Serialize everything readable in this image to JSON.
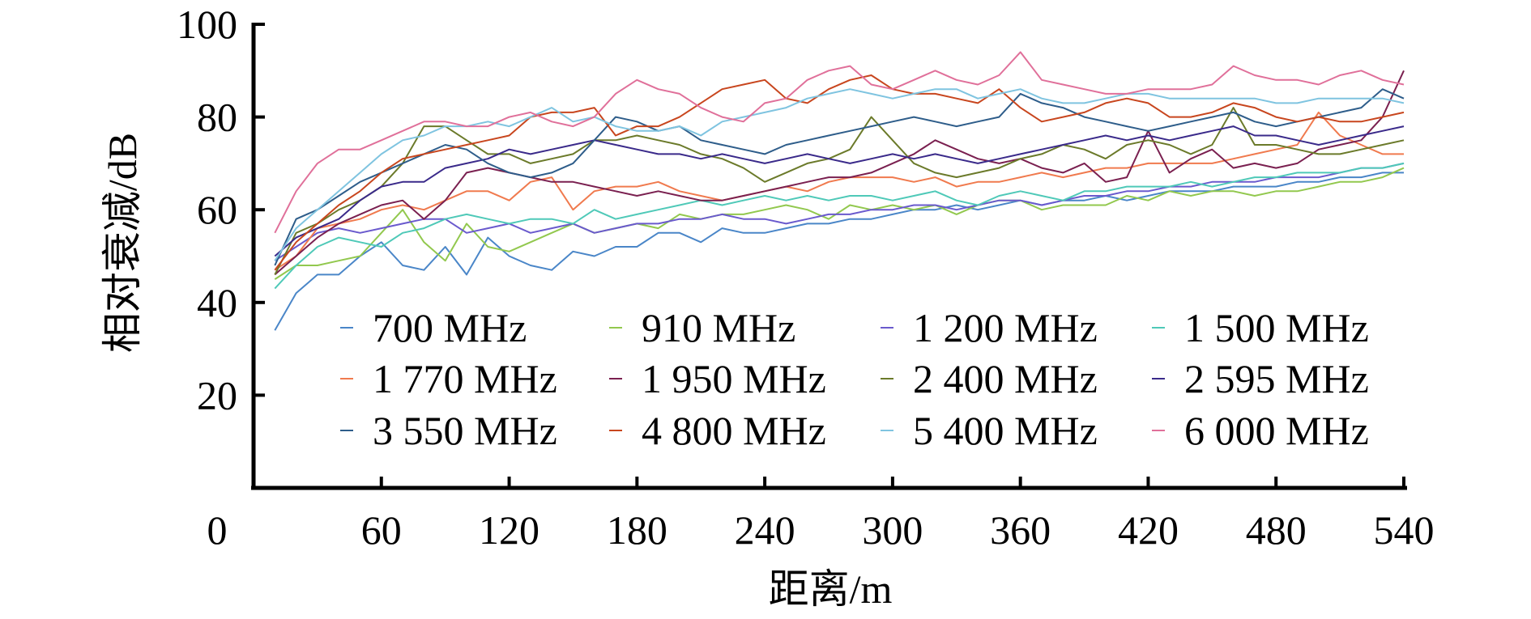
{
  "chart_data": {
    "type": "line",
    "xlabel": "距离/m",
    "ylabel": "相对衰减/dB",
    "xlim": [
      0,
      540
    ],
    "ylim": [
      0,
      100
    ],
    "x_ticks": [
      "0",
      "60",
      "120",
      "180",
      "240",
      "300",
      "360",
      "420",
      "480",
      "540"
    ],
    "y_ticks": [
      "20",
      "40",
      "60",
      "80",
      "100"
    ],
    "grid": false,
    "legend_position": "inside-lower-right",
    "x": [
      10,
      20,
      30,
      40,
      50,
      60,
      70,
      80,
      90,
      100,
      110,
      120,
      130,
      140,
      150,
      160,
      170,
      180,
      190,
      200,
      210,
      220,
      230,
      240,
      250,
      260,
      270,
      280,
      290,
      300,
      310,
      320,
      330,
      340,
      350,
      360,
      370,
      380,
      390,
      400,
      410,
      420,
      430,
      440,
      450,
      460,
      470,
      480,
      490,
      500,
      510,
      520,
      530,
      540
    ],
    "series": [
      {
        "name": "700 MHz",
        "color": "#4a86c8",
        "values": [
          34,
          42,
          46,
          46,
          50,
          53,
          48,
          47,
          52,
          46,
          54,
          50,
          48,
          47,
          51,
          50,
          52,
          52,
          55,
          55,
          53,
          56,
          55,
          55,
          56,
          57,
          57,
          58,
          58,
          59,
          60,
          60,
          61,
          60,
          61,
          62,
          61,
          62,
          62,
          63,
          62,
          63,
          64,
          64,
          64,
          65,
          65,
          65,
          66,
          66,
          67,
          67,
          68,
          68
        ]
      },
      {
        "name": "910 MHz",
        "color": "#92c84e",
        "values": [
          45,
          48,
          48,
          49,
          50,
          55,
          60,
          53,
          49,
          57,
          52,
          51,
          53,
          55,
          57,
          55,
          56,
          57,
          56,
          59,
          58,
          59,
          59,
          60,
          61,
          60,
          58,
          61,
          60,
          61,
          60,
          61,
          59,
          61,
          62,
          62,
          60,
          61,
          61,
          61,
          63,
          62,
          64,
          63,
          64,
          64,
          63,
          64,
          64,
          65,
          66,
          66,
          67,
          69
        ]
      },
      {
        "name": "1 200 MHz",
        "color": "#6a5acd",
        "values": [
          49,
          52,
          55,
          56,
          55,
          56,
          57,
          58,
          58,
          55,
          56,
          57,
          55,
          56,
          57,
          55,
          56,
          57,
          57,
          58,
          58,
          59,
          58,
          58,
          57,
          58,
          59,
          59,
          60,
          60,
          61,
          61,
          60,
          61,
          62,
          62,
          61,
          62,
          63,
          63,
          64,
          64,
          65,
          65,
          66,
          66,
          66,
          67,
          67,
          67,
          68,
          69,
          69,
          70
        ]
      },
      {
        "name": "1 500 MHz",
        "color": "#4fc9b8",
        "values": [
          43,
          48,
          52,
          54,
          53,
          52,
          55,
          56,
          58,
          59,
          58,
          57,
          58,
          58,
          57,
          60,
          58,
          59,
          60,
          61,
          62,
          61,
          62,
          63,
          62,
          63,
          62,
          63,
          63,
          62,
          63,
          64,
          62,
          61,
          63,
          64,
          63,
          62,
          64,
          64,
          65,
          65,
          65,
          66,
          65,
          66,
          67,
          67,
          68,
          68,
          68,
          69,
          69,
          70
        ]
      },
      {
        "name": "1 770 MHz",
        "color": "#f07a4e",
        "values": [
          47,
          50,
          56,
          57,
          58,
          60,
          61,
          60,
          62,
          64,
          64,
          62,
          66,
          67,
          60,
          64,
          65,
          65,
          66,
          64,
          63,
          62,
          63,
          64,
          65,
          64,
          66,
          67,
          67,
          67,
          66,
          67,
          65,
          66,
          66,
          67,
          68,
          67,
          68,
          69,
          69,
          70,
          70,
          70,
          70,
          71,
          72,
          73,
          74,
          81,
          76,
          74,
          72,
          72
        ]
      },
      {
        "name": "1 950 MHz",
        "color": "#7a2050",
        "values": [
          46,
          50,
          54,
          57,
          59,
          61,
          62,
          58,
          62,
          68,
          69,
          68,
          67,
          66,
          66,
          65,
          64,
          63,
          64,
          63,
          62,
          62,
          63,
          64,
          65,
          66,
          67,
          67,
          68,
          70,
          72,
          75,
          73,
          71,
          70,
          71,
          69,
          68,
          70,
          66,
          67,
          77,
          68,
          71,
          73,
          69,
          70,
          69,
          70,
          73,
          74,
          75,
          80,
          90
        ]
      },
      {
        "name": "2 400 MHz",
        "color": "#6b7a2a",
        "values": [
          46,
          55,
          57,
          60,
          62,
          65,
          70,
          78,
          78,
          75,
          72,
          72,
          70,
          71,
          72,
          75,
          75,
          76,
          75,
          74,
          72,
          71,
          69,
          66,
          68,
          70,
          71,
          73,
          80,
          75,
          70,
          68,
          67,
          68,
          69,
          71,
          72,
          74,
          73,
          71,
          74,
          75,
          74,
          72,
          74,
          82,
          74,
          74,
          73,
          72,
          72,
          73,
          74,
          75
        ]
      },
      {
        "name": "2 595 MHz",
        "color": "#3a2a8a",
        "values": [
          50,
          54,
          56,
          58,
          62,
          65,
          66,
          66,
          69,
          70,
          71,
          73,
          72,
          73,
          74,
          75,
          74,
          73,
          72,
          72,
          71,
          72,
          71,
          70,
          71,
          72,
          71,
          70,
          71,
          72,
          71,
          72,
          71,
          70,
          71,
          72,
          73,
          74,
          75,
          76,
          75,
          76,
          75,
          76,
          77,
          78,
          76,
          76,
          75,
          74,
          75,
          76,
          77,
          78
        ]
      },
      {
        "name": "3 550 MHz",
        "color": "#2e5d8a",
        "values": [
          48,
          58,
          60,
          63,
          66,
          68,
          70,
          72,
          74,
          73,
          70,
          68,
          67,
          68,
          70,
          75,
          80,
          79,
          77,
          78,
          75,
          74,
          73,
          72,
          74,
          75,
          76,
          77,
          78,
          79,
          80,
          79,
          78,
          79,
          80,
          85,
          83,
          82,
          80,
          79,
          78,
          77,
          78,
          79,
          80,
          81,
          79,
          78,
          79,
          80,
          81,
          82,
          86,
          84
        ]
      },
      {
        "name": "4 800 MHz",
        "color": "#c8461e",
        "values": [
          47,
          53,
          57,
          61,
          64,
          68,
          71,
          72,
          73,
          74,
          75,
          76,
          80,
          81,
          81,
          82,
          76,
          78,
          78,
          80,
          83,
          86,
          87,
          88,
          84,
          83,
          86,
          88,
          89,
          86,
          85,
          85,
          84,
          83,
          86,
          82,
          79,
          80,
          81,
          83,
          84,
          83,
          80,
          80,
          81,
          83,
          82,
          80,
          79,
          80,
          79,
          79,
          80,
          81
        ]
      },
      {
        "name": "5 400 MHz",
        "color": "#7fc4e0",
        "values": [
          49,
          56,
          60,
          64,
          68,
          72,
          75,
          76,
          78,
          78,
          79,
          78,
          80,
          82,
          79,
          80,
          78,
          77,
          77,
          78,
          76,
          79,
          80,
          81,
          82,
          84,
          85,
          86,
          85,
          84,
          85,
          86,
          86,
          84,
          85,
          86,
          84,
          83,
          83,
          84,
          85,
          85,
          84,
          84,
          84,
          84,
          84,
          83,
          83,
          84,
          84,
          84,
          84,
          83
        ]
      },
      {
        "name": "6 000 MHz",
        "color": "#e0709a",
        "values": [
          55,
          64,
          70,
          73,
          73,
          75,
          77,
          79,
          79,
          78,
          78,
          80,
          81,
          79,
          78,
          80,
          85,
          88,
          86,
          85,
          82,
          80,
          79,
          83,
          84,
          88,
          90,
          91,
          87,
          86,
          88,
          90,
          88,
          87,
          89,
          94,
          88,
          87,
          86,
          85,
          85,
          86,
          86,
          86,
          87,
          91,
          89,
          88,
          88,
          87,
          89,
          90,
          88,
          87
        ]
      }
    ]
  }
}
